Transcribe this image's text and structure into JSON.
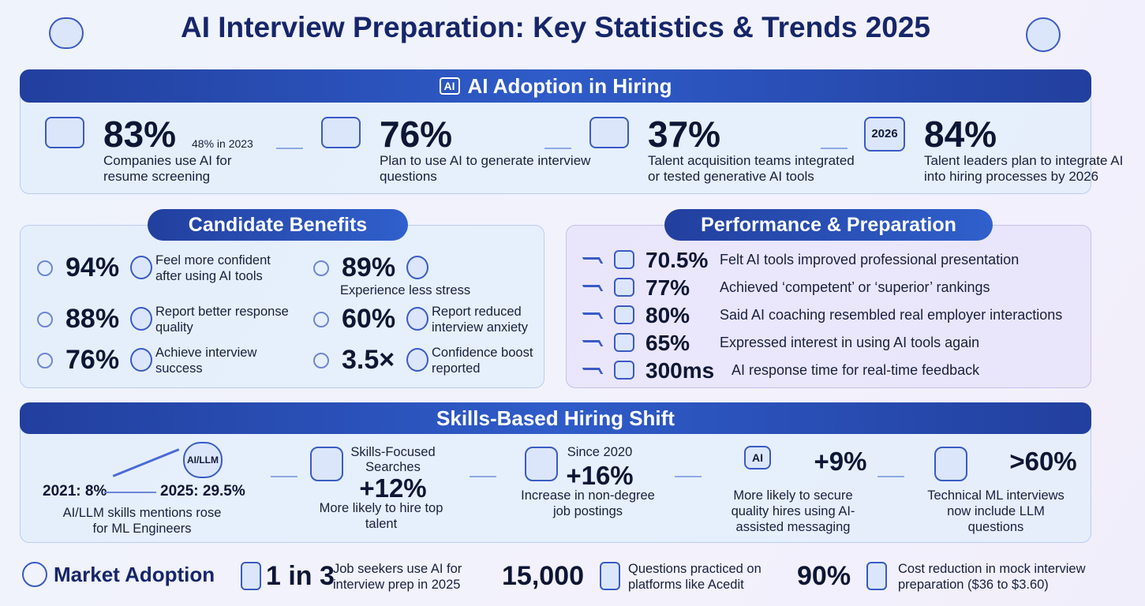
{
  "header": {
    "title": "AI Interview Preparation: Key Statistics & Trends 2025"
  },
  "adoption": {
    "title": "AI Adoption in Hiring",
    "badge": "AI",
    "items": [
      {
        "stat": "83%",
        "note": "48% in 2023",
        "text": "Companies use AI for resume screening"
      },
      {
        "stat": "76%",
        "text": "Plan to use AI to generate interview questions"
      },
      {
        "stat": "37%",
        "text": "Talent acquisition teams integrated or tested generative AI tools"
      },
      {
        "stat": "84%",
        "icon_label": "2026",
        "text": "Talent leaders plan to integrate AI into hiring processes by 2026"
      }
    ]
  },
  "benefits": {
    "title": "Candidate Benefits",
    "items": [
      {
        "stat": "94%",
        "text": "Feel more confident after using AI tools"
      },
      {
        "stat": "89%",
        "text": "Experience less stress"
      },
      {
        "stat": "88%",
        "text": "Report better response quality"
      },
      {
        "stat": "60%",
        "text": "Report reduced interview anxiety"
      },
      {
        "stat": "76%",
        "text": "Achieve interview success"
      },
      {
        "stat": "3.5×",
        "text": "Confidence boost reported"
      }
    ]
  },
  "performance": {
    "title": "Performance & Preparation",
    "items": [
      {
        "stat": "70.5%",
        "text": "Felt AI tools improved professional presentation"
      },
      {
        "stat": "77%",
        "text": "Achieved ‘competent’ or ‘superior’ rankings"
      },
      {
        "stat": "80%",
        "text": "Said AI coaching resembled real employer interactions"
      },
      {
        "stat": "65%",
        "text": "Expressed interest in using AI tools again"
      },
      {
        "stat": "300ms",
        "text": "AI response time for real-time feedback"
      }
    ]
  },
  "skills": {
    "title": "Skills-Based Hiring Shift",
    "first": {
      "icon_label": "AI/LLM",
      "from": "2021: 8%",
      "to": "2025: 29.5%",
      "text": "AI/LLM skills mentions rose for ML Engineers"
    },
    "items": [
      {
        "label": "Skills-Focused Searches",
        "stat": "+12%",
        "text": "More likely to hire top talent"
      },
      {
        "label": "Since 2020",
        "stat": "+16%",
        "text": "Increase in non-degree job postings"
      },
      {
        "icon_label": "AI",
        "stat": "+9%",
        "text": "More likely to secure quality hires using AI-assisted messaging"
      },
      {
        "stat": ">60%",
        "text": "Technical ML interviews now include LLM questions"
      }
    ]
  },
  "market": {
    "title": "Market Adoption",
    "items": [
      {
        "stat": "1 in 3",
        "text": "Job seekers use AI for interview prep in 2025"
      },
      {
        "stat": "15,000",
        "text": "Questions practiced on platforms like Acedit"
      },
      {
        "stat": "90%",
        "text": "Cost reduction in mock interview preparation ($36 to $3.60)"
      }
    ]
  }
}
